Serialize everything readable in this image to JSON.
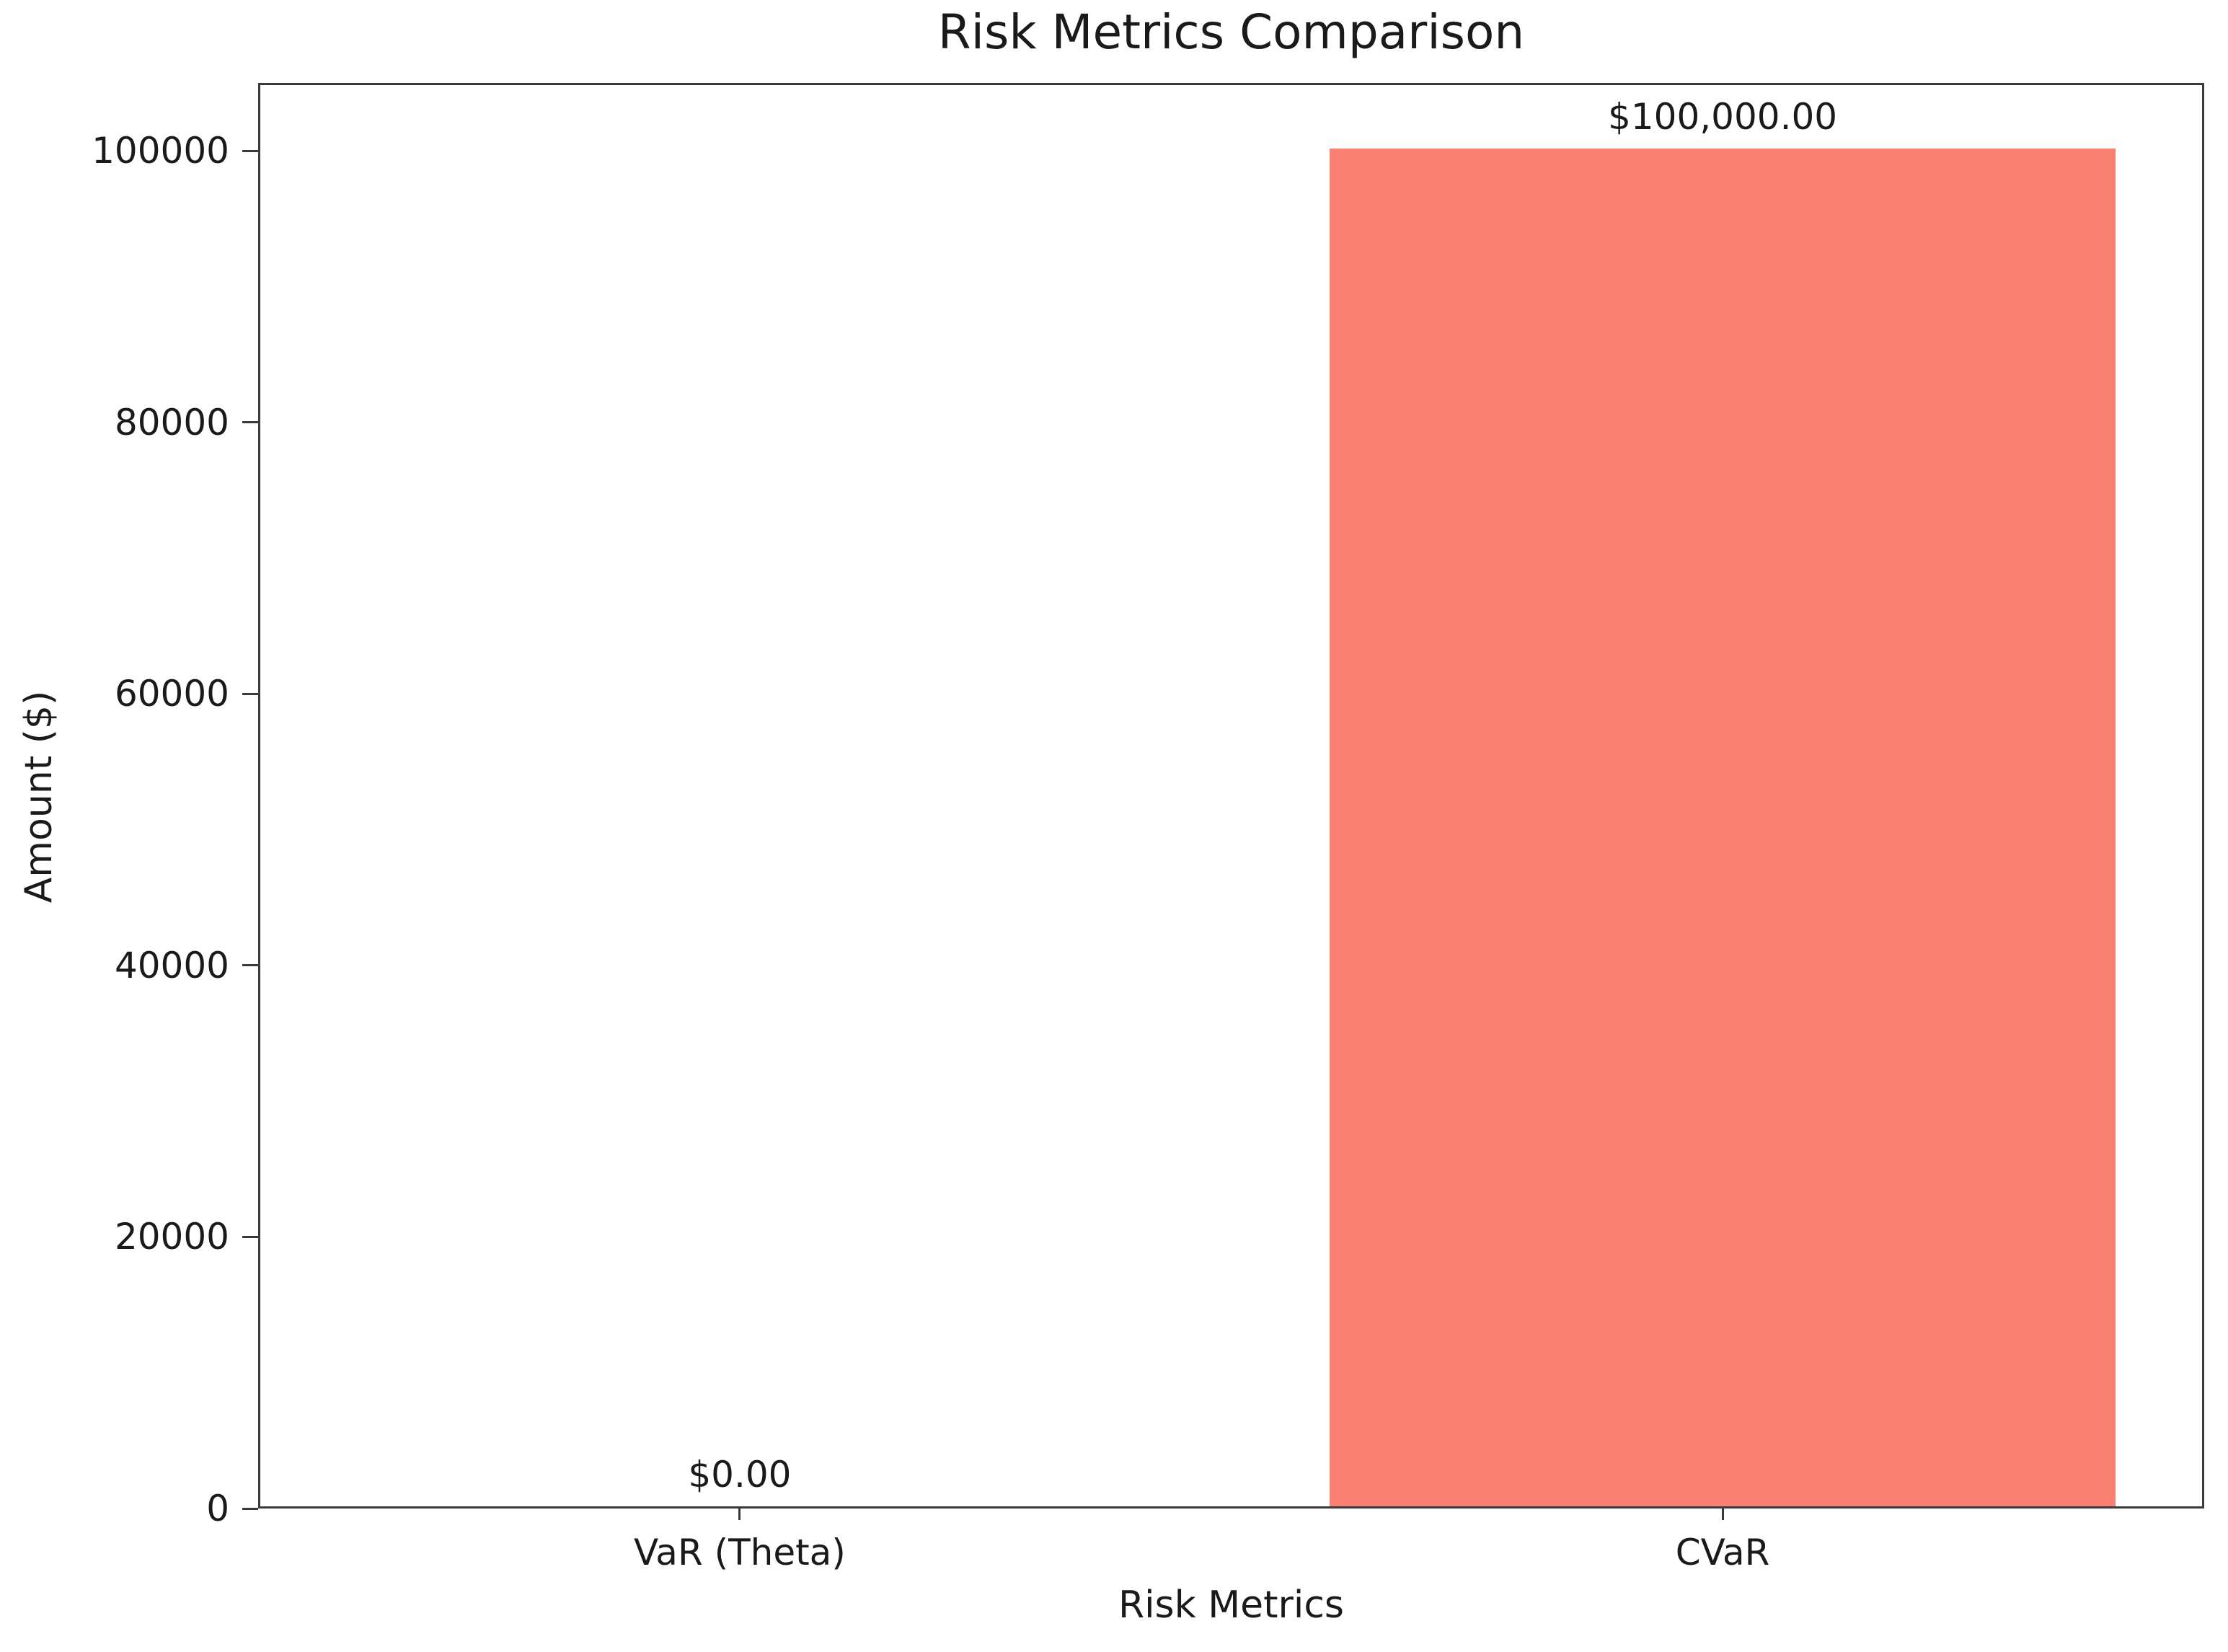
{
  "chart_data": {
    "type": "bar",
    "title": "Risk Metrics Comparison",
    "xlabel": "Risk Metrics",
    "ylabel": "Amount ($)",
    "categories": [
      "VaR (Theta)",
      "CVaR"
    ],
    "values": [
      0,
      100000
    ],
    "bar_labels": [
      "$0.00",
      "$100,000.00"
    ],
    "bar_color": "#FA8072",
    "axis_color": "#3a3a3a",
    "text_color": "#1a1a1a",
    "ylim": [
      0,
      105000
    ],
    "yticks": [
      0,
      20000,
      40000,
      60000,
      80000,
      100000
    ],
    "ytick_labels": [
      "0",
      "20000",
      "40000",
      "60000",
      "80000",
      "100000"
    ],
    "xlim": [
      -0.49,
      1.49
    ],
    "bar_width_units": 0.8,
    "grid": false,
    "legend": null,
    "background": "#ffffff"
  }
}
